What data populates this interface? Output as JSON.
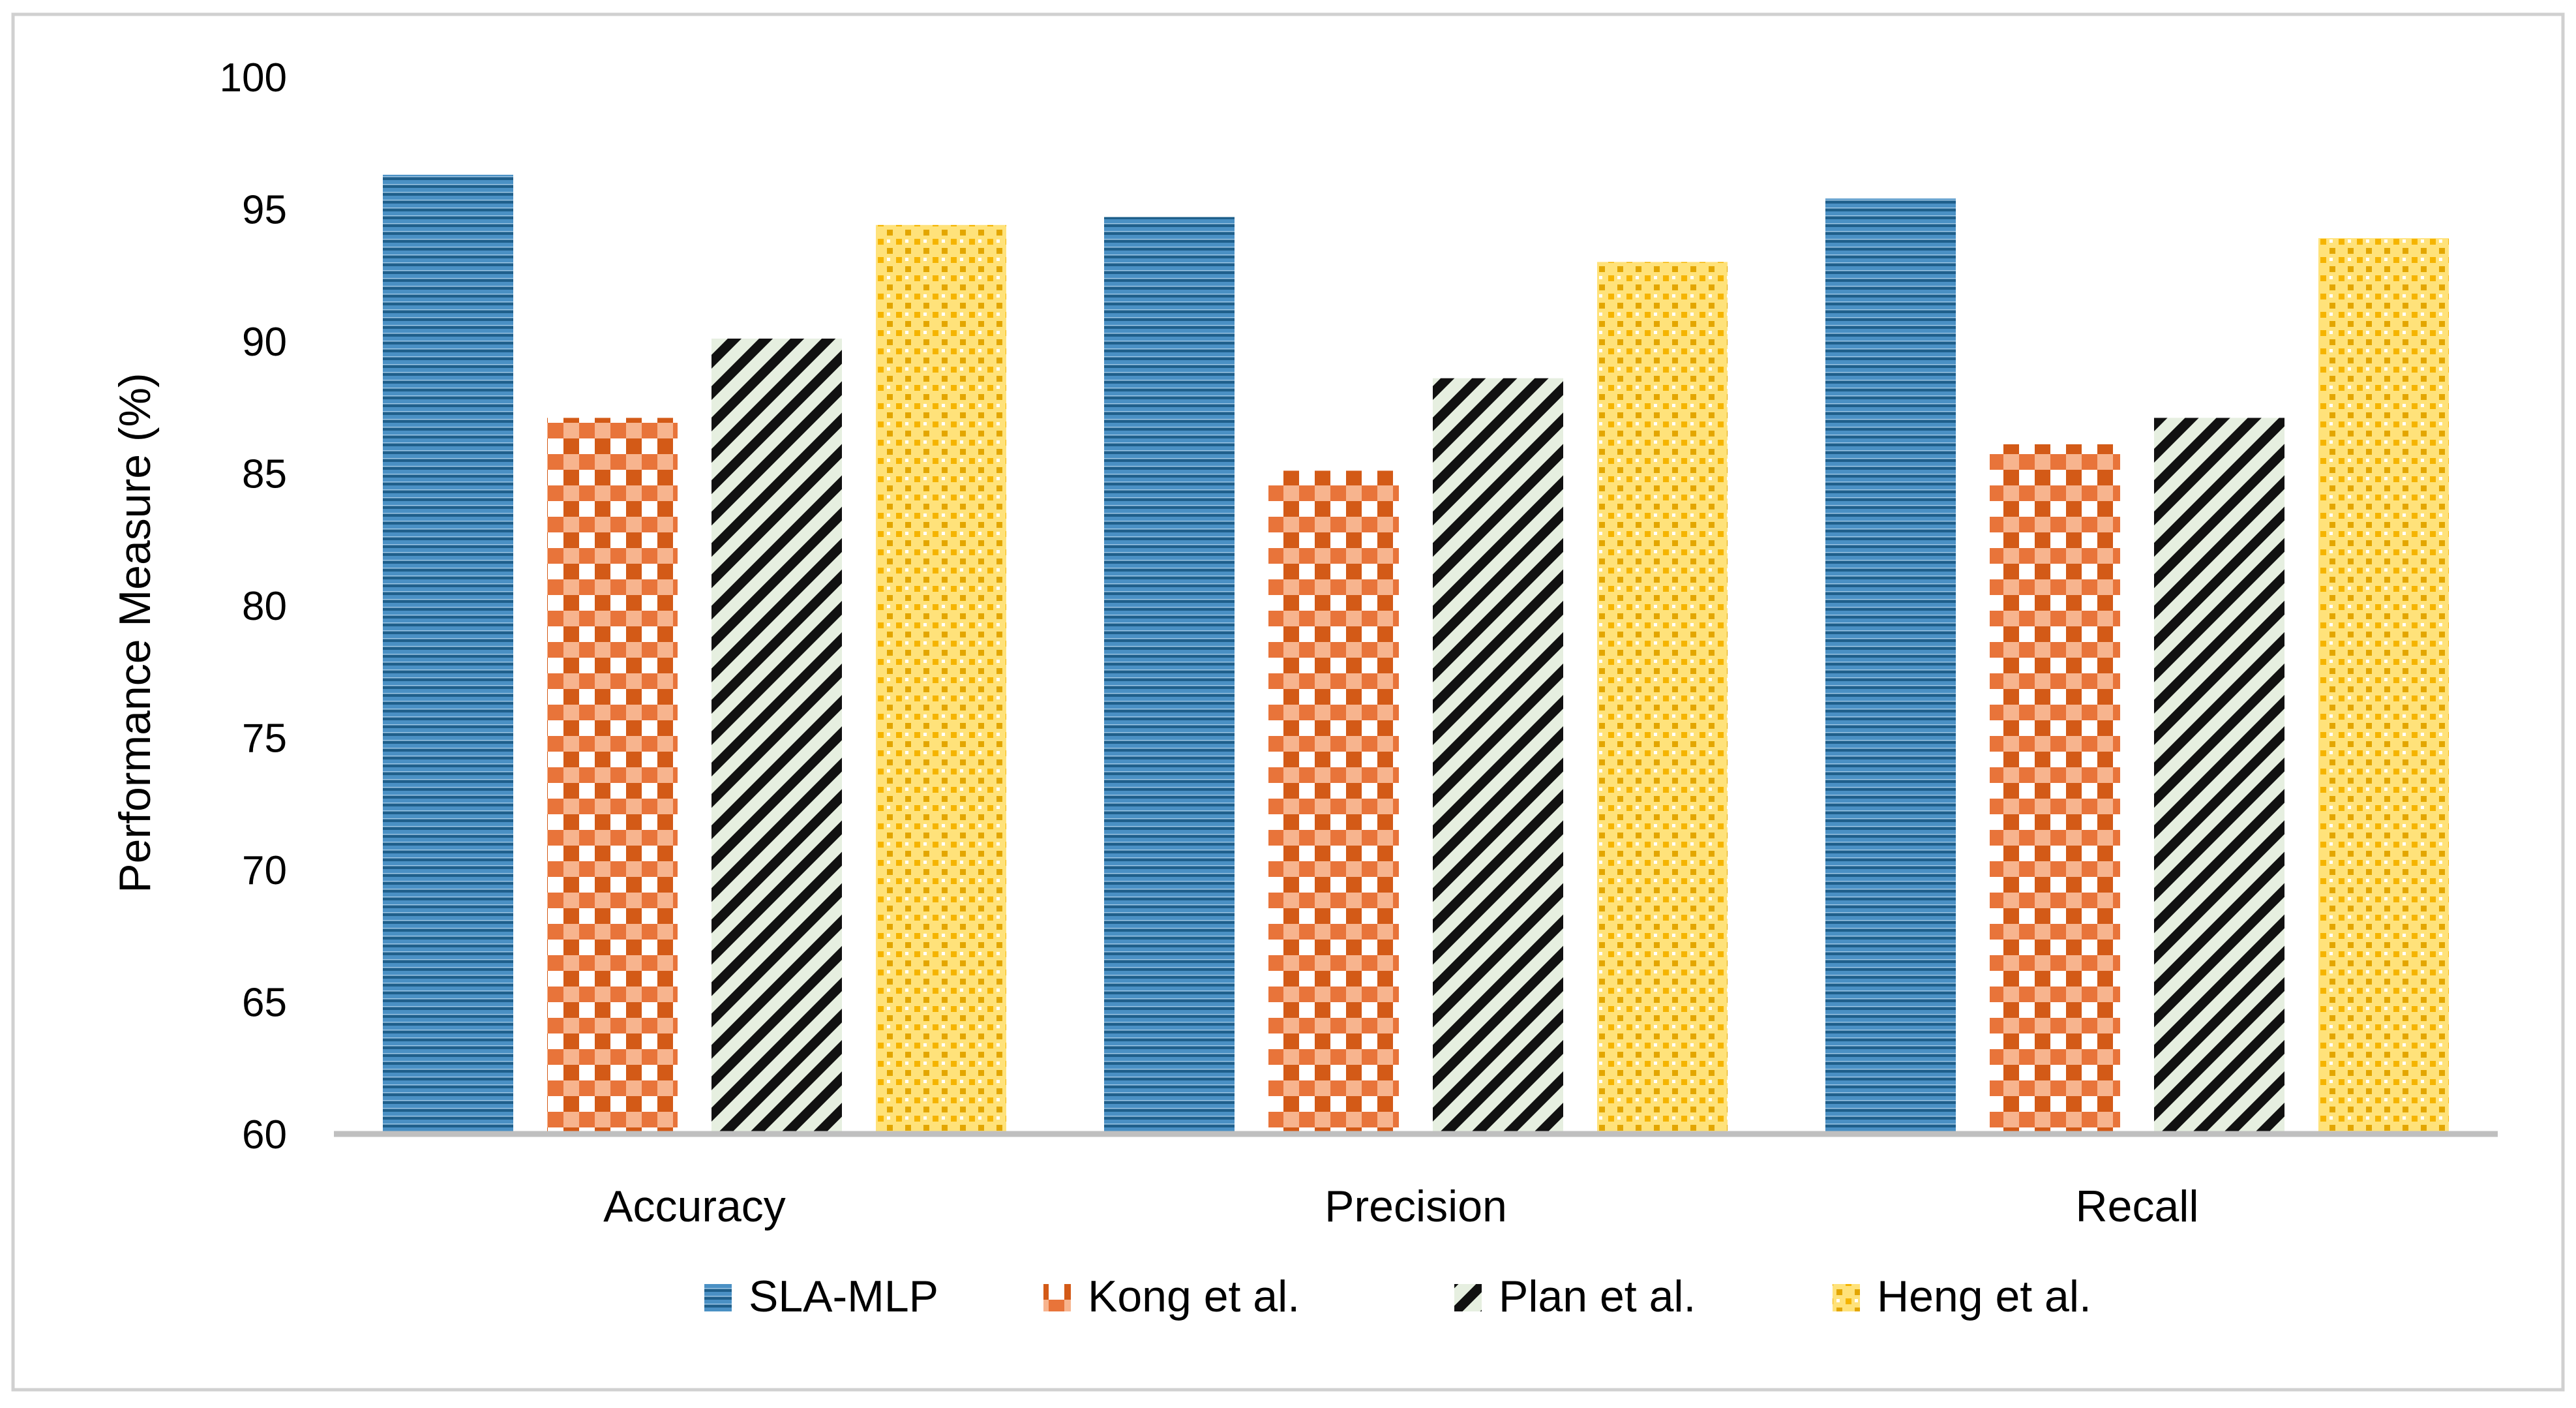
{
  "chart_data": {
    "type": "bar",
    "title": "",
    "xlabel": "",
    "ylabel": "Performance Measure (%)",
    "ylim": [
      60,
      100
    ],
    "yticks": [
      "60",
      "65",
      "70",
      "75",
      "80",
      "85",
      "90",
      "95",
      "100"
    ],
    "categories": [
      "Accuracy",
      "Precision",
      "Recall"
    ],
    "series": [
      {
        "name": "SLA-MLP",
        "values": [
          96.3,
          94.7,
          95.4
        ],
        "color": "#2e75b6",
        "pattern": "horizontal-lines"
      },
      {
        "name": "Kong et al.",
        "values": [
          87.1,
          85.1,
          86.1
        ],
        "color": "#e2681f",
        "pattern": "checker"
      },
      {
        "name": "Plan et al.",
        "values": [
          90.1,
          88.6,
          87.1
        ],
        "color": "#1f1f1f",
        "pattern": "diagonal-stripes"
      },
      {
        "name": "Heng et al.",
        "values": [
          94.4,
          93.0,
          93.9
        ],
        "color": "#f2c230",
        "pattern": "dots"
      }
    ],
    "legend_position": "bottom",
    "grid": false
  }
}
